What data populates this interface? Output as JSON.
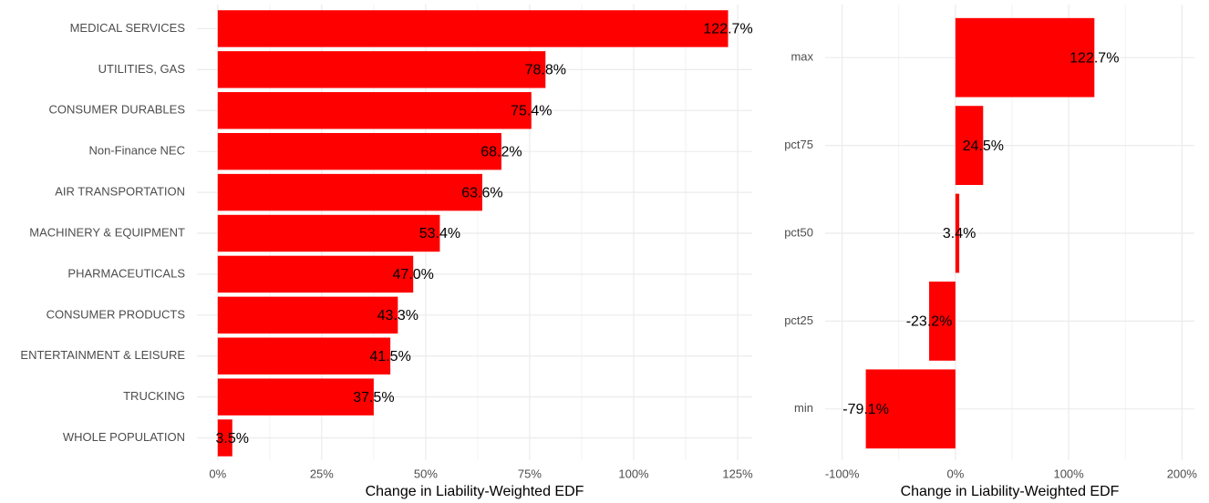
{
  "chart_data": [
    {
      "type": "bar",
      "orientation": "horizontal",
      "x_label": "Change in Liability-Weighted EDF",
      "categories": [
        "MEDICAL SERVICES",
        "UTILITIES, GAS",
        "CONSUMER DURABLES",
        "Non-Finance NEC",
        "AIR TRANSPORTATION",
        "MACHINERY & EQUIPMENT",
        "PHARMACEUTICALS",
        "CONSUMER PRODUCTS",
        "ENTERTAINMENT & LEISURE",
        "TRUCKING",
        "WHOLE POPULATION"
      ],
      "values": [
        122.7,
        78.8,
        75.4,
        68.2,
        63.6,
        53.4,
        47.0,
        43.3,
        41.5,
        37.5,
        3.5
      ],
      "value_labels": [
        "122.7%",
        "78.8%",
        "75.4%",
        "68.2%",
        "63.6%",
        "53.4%",
        "47.0%",
        "43.3%",
        "41.5%",
        "37.5%",
        "3.5%"
      ],
      "color": "#ff0000",
      "grid": true,
      "xlim": [
        -5,
        128.5
      ],
      "xticks": [
        {
          "value": 0,
          "label": "0%"
        },
        {
          "value": 25,
          "label": "25%"
        },
        {
          "value": 50,
          "label": "50%"
        },
        {
          "value": 75,
          "label": "75%"
        },
        {
          "value": 100,
          "label": "100%"
        },
        {
          "value": 125,
          "label": "125%"
        }
      ]
    },
    {
      "type": "bar",
      "orientation": "horizontal",
      "x_label": "Change in Liability-Weighted EDF",
      "categories": [
        "max",
        "pct75",
        "pct50",
        "pct25",
        "min"
      ],
      "values": [
        122.7,
        24.5,
        3.4,
        -23.2,
        -79.1
      ],
      "value_labels": [
        "122.7%",
        "24.5%",
        "3.4%",
        "-23.2%",
        "-79.1%"
      ],
      "color": "#ff0000",
      "grid": true,
      "xlim": [
        -115,
        211
      ],
      "xticks": [
        {
          "value": -100,
          "label": "-100%"
        },
        {
          "value": 0,
          "label": "0%"
        },
        {
          "value": 100,
          "label": "100%"
        },
        {
          "value": 200,
          "label": "200%"
        }
      ]
    }
  ]
}
